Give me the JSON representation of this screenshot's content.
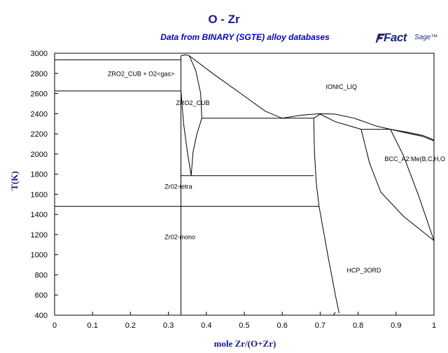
{
  "colors": {
    "title": "#1a1a8c",
    "subtitle": "#0000cc",
    "logo": "#1f2a6e",
    "axis": "#000000"
  },
  "logo": {
    "part1": "Fact",
    "part2": "Sage™"
  },
  "chart_data": {
    "type": "line",
    "title": "O - Zr",
    "subtitle": "Data from BINARY (SGTE) alloy databases",
    "xlabel": "mole Zr/(O+Zr)",
    "ylabel": "T(K)",
    "xlim": [
      0,
      1
    ],
    "ylim": [
      400,
      3000
    ],
    "x_ticks": [
      0,
      0.1,
      0.2,
      0.3,
      0.4,
      0.5,
      0.6,
      0.7,
      0.8,
      0.9,
      1
    ],
    "x_tick_labels": [
      "0",
      "0.1",
      "0.2",
      "0.3",
      "0.4",
      "0.5",
      "0.6",
      "0.7",
      "0.8",
      "0.9",
      "1"
    ],
    "y_ticks": [
      400,
      600,
      800,
      1000,
      1200,
      1400,
      1600,
      1800,
      2000,
      2200,
      2400,
      2600,
      2800,
      3000
    ],
    "y_tick_labels": [
      "400",
      "600",
      "800",
      "1000",
      "1200",
      "1400",
      "1600",
      "1800",
      "2000",
      "2200",
      "2400",
      "2600",
      "2800",
      "3000"
    ],
    "grid": false,
    "phase_labels": [
      {
        "text": "ZRO2_CUB + O2<gas>",
        "x": 0.14,
        "y": 2775
      },
      {
        "text": "ZRO2_CUB",
        "x": 0.32,
        "y": 2485
      },
      {
        "text": "IONIC_LIQ",
        "x": 0.715,
        "y": 2645
      },
      {
        "text": "BCC_A2:Me(B,C,H,O",
        "x": 0.87,
        "y": 1930
      },
      {
        "text": "Zr02-tetra",
        "x": 0.29,
        "y": 1655
      },
      {
        "text": "Zr02-mono",
        "x": 0.29,
        "y": 1155
      },
      {
        "text": "HCP_3ORD",
        "x": 0.77,
        "y": 825
      }
    ],
    "lines": [
      {
        "name": "three-phase-2935",
        "points": [
          [
            0,
            2935
          ],
          [
            0.333,
            2935
          ]
        ]
      },
      {
        "name": "three-phase-2625",
        "points": [
          [
            0,
            2625
          ],
          [
            0.333,
            2625
          ]
        ]
      },
      {
        "name": "three-phase-1480",
        "points": [
          [
            0,
            1480
          ],
          [
            0.697,
            1480
          ]
        ]
      },
      {
        "name": "three-phase-1785",
        "points": [
          [
            0.333,
            1785
          ],
          [
            0.683,
            1785
          ]
        ]
      },
      {
        "name": "eutectic-2355",
        "points": [
          [
            0.388,
            2355
          ],
          [
            0.683,
            2355
          ]
        ]
      },
      {
        "name": "three-phase-2245",
        "points": [
          [
            0.808,
            2245
          ],
          [
            0.885,
            2245
          ]
        ]
      },
      {
        "name": "zro2-stoich",
        "points": [
          [
            0.333,
            400
          ],
          [
            0.333,
            2975
          ]
        ]
      },
      {
        "name": "cub-top-cap",
        "points": [
          [
            0.333,
            2975
          ],
          [
            0.345,
            2985
          ],
          [
            0.355,
            2975
          ]
        ]
      },
      {
        "name": "cub-left-boundary",
        "points": [
          [
            0.333,
            2625
          ],
          [
            0.34,
            2300
          ],
          [
            0.35,
            2020
          ],
          [
            0.36,
            1785
          ]
        ]
      },
      {
        "name": "cub-right-boundary",
        "points": [
          [
            0.355,
            2975
          ],
          [
            0.372,
            2830
          ],
          [
            0.385,
            2600
          ],
          [
            0.388,
            2355
          ]
        ]
      },
      {
        "name": "tetra-boundary",
        "points": [
          [
            0.388,
            2355
          ],
          [
            0.375,
            2200
          ],
          [
            0.365,
            2020
          ],
          [
            0.36,
            1785
          ]
        ]
      },
      {
        "name": "liquidus-oxide",
        "points": [
          [
            0.355,
            2975
          ],
          [
            0.42,
            2790
          ],
          [
            0.5,
            2575
          ],
          [
            0.555,
            2425
          ],
          [
            0.6,
            2355
          ]
        ]
      },
      {
        "name": "liquid-hump",
        "points": [
          [
            0.6,
            2355
          ],
          [
            0.65,
            2385
          ],
          [
            0.7,
            2400
          ],
          [
            0.74,
            2395
          ],
          [
            0.79,
            2355
          ],
          [
            0.85,
            2275
          ],
          [
            0.92,
            2215
          ],
          [
            0.97,
            2175
          ],
          [
            1.0,
            2130
          ]
        ]
      },
      {
        "name": "liquidus-hcp",
        "points": [
          [
            0.683,
            2355
          ],
          [
            0.7,
            2395
          ],
          [
            0.74,
            2320
          ],
          [
            0.808,
            2245
          ]
        ]
      },
      {
        "name": "solidus-hcp",
        "points": [
          [
            0.683,
            2355
          ],
          [
            0.685,
            2000
          ],
          [
            0.69,
            1700
          ],
          [
            0.697,
            1480
          ],
          [
            0.72,
            1000
          ],
          [
            0.74,
            600
          ],
          [
            0.75,
            420
          ]
        ]
      },
      {
        "name": "bcc-upper",
        "points": [
          [
            0.885,
            2245
          ],
          [
            0.93,
            2215
          ],
          [
            0.97,
            2185
          ],
          [
            1.0,
            2140
          ]
        ]
      },
      {
        "name": "bcc-lower-solvus",
        "points": [
          [
            0.885,
            2245
          ],
          [
            0.92,
            1980
          ],
          [
            0.96,
            1580
          ],
          [
            1.0,
            1140
          ]
        ]
      },
      {
        "name": "hcp-bcc-solvus",
        "points": [
          [
            0.808,
            2245
          ],
          [
            0.83,
            1910
          ],
          [
            0.86,
            1620
          ],
          [
            0.92,
            1380
          ],
          [
            1.0,
            1140
          ]
        ]
      },
      {
        "name": "hcp-lower-tail",
        "points": [
          [
            0.74,
            430
          ],
          [
            0.735,
            400
          ]
        ]
      }
    ]
  }
}
